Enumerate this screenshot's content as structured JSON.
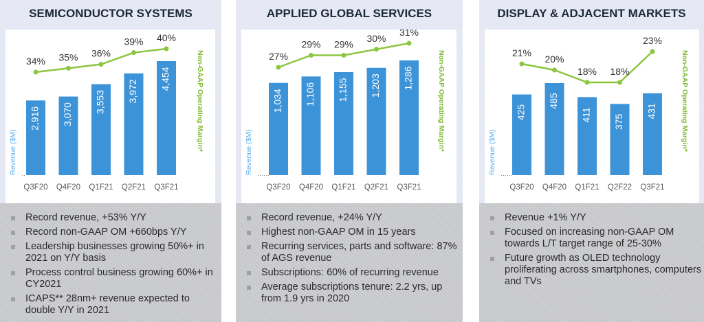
{
  "colors": {
    "bar": "#3d93d8",
    "line": "#8cc63f",
    "ylabel": "#5aaef0",
    "text": "#2a2a2a"
  },
  "panels": [
    {
      "title": "SEMICONDUCTOR SYSTEMS",
      "bullets": [
        "Record revenue, +53% Y/Y",
        "Record non-GAAP OM +660bps Y/Y",
        "Leadership businesses growing 50%+ in 2021 on Y/Y basis",
        "Process control business growing 60%+ in CY2021",
        "ICAPS** 28nm+ revenue expected to double Y/Y in 2021"
      ]
    },
    {
      "title": "APPLIED GLOBAL SERVICES",
      "bullets": [
        "Record revenue, +24% Y/Y",
        "Highest non-GAAP OM in 15 years",
        "Recurring services, parts and software: 87% of AGS revenue",
        "Subscriptions: 60% of recurring revenue",
        "Average subscriptions tenure: 2.2 yrs, up from 1.9 yrs in 2020"
      ]
    },
    {
      "title": "DISPLAY & ADJACENT MARKETS",
      "bullets": [
        "Revenue +1% Y/Y",
        "Focused on increasing non-GAAP OM towards L/T target range of 25-30%",
        "Future growth as OLED technology proliferating across smartphones, computers and TVs"
      ]
    }
  ],
  "chart_data": [
    {
      "type": "bar",
      "title": "SEMICONDUCTOR SYSTEMS",
      "ylabel": "Revenue ($M)",
      "y2label": "Non-GAAP Operating Margin*",
      "categories": [
        "Q3F20",
        "Q4F20",
        "Q1F21",
        "Q2F21",
        "Q3F21"
      ],
      "series": [
        {
          "name": "Revenue ($M)",
          "values": [
            2916,
            3070,
            3553,
            3972,
            4454
          ],
          "labels": [
            "2,916",
            "3,070",
            "3,553",
            "3,972",
            "4,454"
          ]
        },
        {
          "name": "Non-GAAP Operating Margin",
          "type": "line",
          "values": [
            34,
            35,
            36,
            39,
            40
          ],
          "labels": [
            "34%",
            "35%",
            "36%",
            "39%",
            "40%"
          ]
        }
      ]
    },
    {
      "type": "bar",
      "title": "APPLIED GLOBAL SERVICES",
      "ylabel": "Revenue ($M)",
      "y2label": "Non-GAAP Operating Margin*",
      "categories": [
        "Q3F20",
        "Q4F20",
        "Q1F21",
        "Q2F21",
        "Q3F21"
      ],
      "series": [
        {
          "name": "Revenue ($M)",
          "values": [
            1034,
            1106,
            1155,
            1203,
            1286
          ],
          "labels": [
            "1,034",
            "1,106",
            "1,155",
            "1,203",
            "1,286"
          ]
        },
        {
          "name": "Non-GAAP Operating Margin",
          "type": "line",
          "values": [
            27,
            29,
            29,
            30,
            31
          ],
          "labels": [
            "27%",
            "29%",
            "29%",
            "30%",
            "31%"
          ]
        }
      ]
    },
    {
      "type": "bar",
      "title": "DISPLAY & ADJACENT MARKETS",
      "ylabel": "Revenue ($M)",
      "y2label": "Non-GAAP Operating Margin*",
      "categories": [
        "Q3F20",
        "Q4F20",
        "Q1F21",
        "Q2F22",
        "Q3F21"
      ],
      "series": [
        {
          "name": "Revenue ($M)",
          "values": [
            425,
            485,
            411,
            375,
            431
          ],
          "labels": [
            "425",
            "485",
            "411",
            "375",
            "431"
          ]
        },
        {
          "name": "Non-GAAP Operating Margin",
          "type": "line",
          "values": [
            21,
            20,
            18,
            18,
            23
          ],
          "labels": [
            "21%",
            "20%",
            "18%",
            "18%",
            "23%"
          ]
        }
      ]
    }
  ]
}
